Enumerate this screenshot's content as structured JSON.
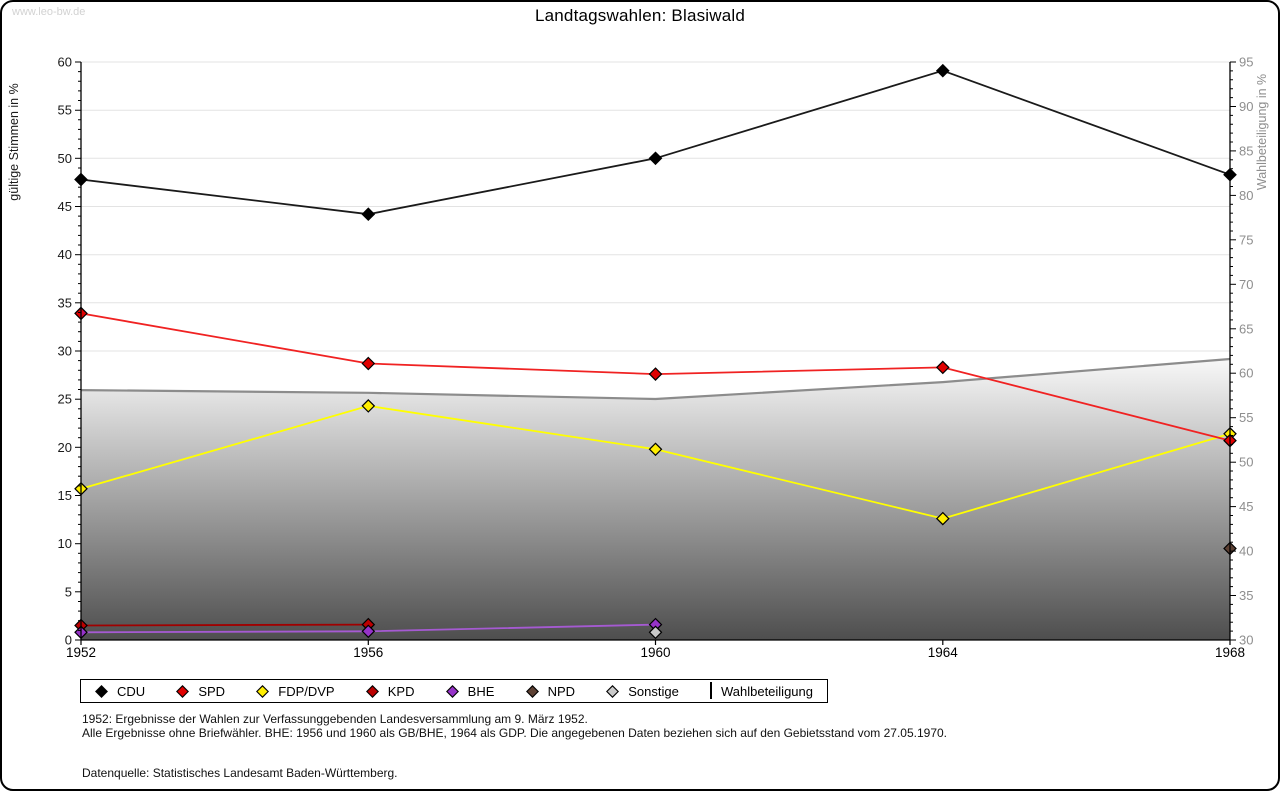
{
  "watermark": "www.leo-bw.de",
  "title": "Landtagswahlen: Blasiwald",
  "chart_data": {
    "type": "line",
    "x": [
      1952,
      1956,
      1960,
      1964,
      1968
    ],
    "left_axis": {
      "label": "gültige Stimmen in %",
      "min": 0,
      "max": 60,
      "tick_step": 5,
      "minor_step": 1
    },
    "right_axis": {
      "label": "Wahlbeteiligung in %",
      "min": 30,
      "max": 95,
      "tick_step": 5,
      "minor_step": 1
    },
    "grid": "horizontal",
    "legend_position": "bottom",
    "series": [
      {
        "name": "CDU",
        "color": "#000000",
        "line_color": "#1a1a1a",
        "axis": "left",
        "values": [
          47.8,
          44.2,
          50.0,
          59.1,
          48.3
        ]
      },
      {
        "name": "SPD",
        "color": "#e00000",
        "line_color": "#f02222",
        "axis": "left",
        "values": [
          33.9,
          28.7,
          27.6,
          28.3,
          20.7
        ]
      },
      {
        "name": "FDP/DVP",
        "color": "#ffee00",
        "line_color": "#ffff00",
        "axis": "left",
        "values": [
          15.7,
          24.3,
          19.8,
          12.6,
          21.4
        ]
      },
      {
        "name": "KPD",
        "color": "#bb0000",
        "line_color": "#a00000",
        "axis": "left",
        "values": [
          1.5,
          1.6,
          null,
          null,
          null
        ]
      },
      {
        "name": "BHE",
        "color": "#9633c8",
        "line_color": "#a55ad2",
        "axis": "left",
        "values": [
          0.8,
          0.9,
          1.6,
          null,
          null
        ]
      },
      {
        "name": "NPD",
        "color": "#5c4033",
        "line_color": "#5c4033",
        "axis": "left",
        "values": [
          null,
          null,
          null,
          null,
          9.5
        ]
      },
      {
        "name": "Sonstige",
        "color": "#c9c9c9",
        "line_color": "#c9c9c9",
        "axis": "left",
        "values": [
          null,
          null,
          0.8,
          null,
          null
        ]
      }
    ],
    "wahlbeteiligung": {
      "name": "Wahlbeteiligung",
      "axis": "right",
      "values": [
        58.1,
        57.8,
        57.1,
        59.0,
        61.6
      ],
      "line_color": "#8c8c8c",
      "fill_top": "#fbfbfb",
      "fill_bottom": "#4e4e4e"
    }
  },
  "footnotes": [
    "1952: Ergebnisse der Wahlen zur Verfassunggebenden Landesversammlung am 9. März 1952.",
    "Alle Ergebnisse ohne Briefwähler. BHE: 1956 und 1960 als GB/BHE, 1964 als GDP. Die angegebenen Daten beziehen sich auf den Gebietsstand vom 27.05.1970."
  ],
  "source": "Datenquelle: Statistisches Landesamt Baden-Württemberg."
}
